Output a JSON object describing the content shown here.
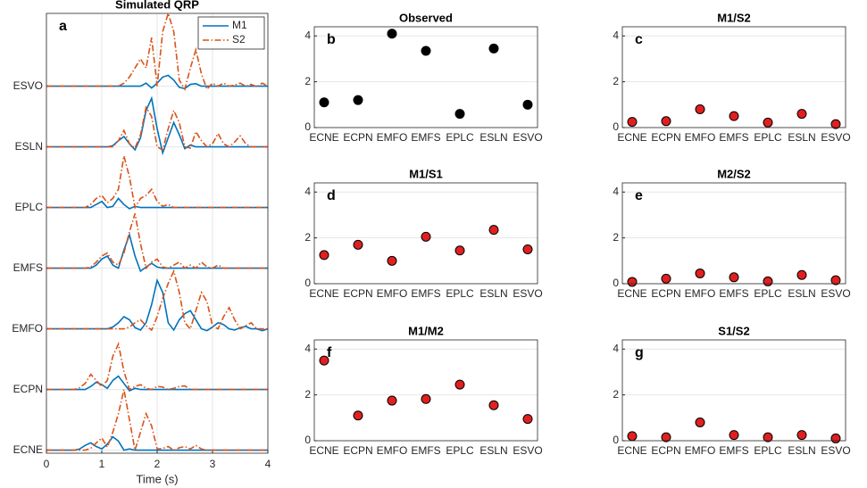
{
  "chart_data": [
    {
      "type": "line",
      "title": "Simulated QRP",
      "panel_label": "a",
      "xlabel": "Time (s)",
      "x": [
        0,
        0.1,
        0.2,
        0.3,
        0.4,
        0.5,
        0.6,
        0.7,
        0.8,
        0.9,
        1,
        1.1,
        1.2,
        1.3,
        1.4,
        1.5,
        1.6,
        1.7,
        1.8,
        1.9,
        2,
        2.1,
        2.2,
        2.3,
        2.4,
        2.5,
        2.6,
        2.7,
        2.8,
        2.9,
        3,
        3.1,
        3.2,
        3.3,
        3.4,
        3.5,
        3.6,
        3.7,
        3.8,
        3.9,
        4
      ],
      "series": [
        {
          "name": "M1",
          "color": "#0072bd",
          "line_style": "solid",
          "values": [
            [
              0,
              0,
              0,
              0,
              0,
              0,
              0.02,
              0.08,
              0.12,
              0.06,
              0.02,
              0.1,
              0.22,
              0.15,
              0,
              0.02,
              0,
              0,
              0,
              0,
              0,
              0,
              0,
              0,
              0,
              0,
              0,
              0,
              0,
              0,
              0,
              0,
              0,
              0,
              0,
              0,
              0,
              0,
              0,
              0,
              0
            ],
            [
              1,
              1,
              1,
              1,
              1,
              1,
              1,
              1,
              1.05,
              1.12,
              1.08,
              1.02,
              1.15,
              1.22,
              1.1,
              0.98,
              1.02,
              1,
              1,
              1,
              1,
              1,
              1,
              1,
              1,
              1,
              1,
              1,
              1,
              1,
              1,
              1,
              1,
              1,
              1,
              1,
              1,
              1,
              1,
              1,
              1
            ],
            [
              2,
              2,
              2,
              2,
              2,
              2,
              2,
              2,
              2,
              2,
              2,
              2,
              2.03,
              2.1,
              2.2,
              2.15,
              2.02,
              1.98,
              2.1,
              2.4,
              2.8,
              2.6,
              2.1,
              1.98,
              2.15,
              2.25,
              2.3,
              2.15,
              2,
              1.97,
              2.03,
              2.1,
              2.07,
              2,
              1.98,
              2.02,
              2.04,
              2,
              2,
              1.97,
              2
            ],
            [
              3,
              3,
              3,
              3,
              3,
              3,
              3,
              3,
              3,
              3.05,
              3.15,
              3.2,
              3.05,
              3,
              3.3,
              3.55,
              3.2,
              2.95,
              3.02,
              3.08,
              3.02,
              3,
              3,
              3,
              3,
              3,
              3,
              3,
              3,
              3,
              3,
              3,
              3,
              3,
              3,
              3,
              3,
              3,
              3,
              3,
              3
            ],
            [
              4,
              4,
              4,
              4,
              4,
              4,
              4,
              4,
              4,
              4.05,
              4.1,
              4,
              4.02,
              4.15,
              4.05,
              3.98,
              4.02,
              4,
              4,
              4,
              4,
              4,
              4,
              4,
              4,
              4,
              4,
              4,
              4,
              4,
              4,
              4,
              4,
              4,
              4,
              4,
              4,
              4,
              4,
              4,
              4
            ],
            [
              5,
              5,
              5,
              5,
              5,
              5,
              5,
              5,
              5,
              5,
              5,
              5,
              5.02,
              5.1,
              5.17,
              5.05,
              4.95,
              5.15,
              5.6,
              5.8,
              5.3,
              4.9,
              5.15,
              5.4,
              5.2,
              4.97,
              5.03,
              5,
              5,
              5,
              5,
              5,
              5,
              5,
              5,
              5,
              5,
              5,
              5,
              5,
              5
            ],
            [
              6,
              6,
              6,
              6,
              6,
              6,
              6,
              6,
              6,
              6,
              6,
              6,
              6,
              6,
              6,
              6,
              6,
              6,
              6.05,
              5.97,
              6.05,
              6.15,
              6.18,
              6.1,
              5.98,
              5.96,
              6.03,
              6.04,
              6,
              6,
              6,
              6,
              6,
              6,
              6,
              6,
              6,
              6,
              6,
              6,
              6
            ]
          ]
        },
        {
          "name": "S2",
          "color": "#d95319",
          "line_style": "dashdot",
          "values": [
            [
              0,
              0,
              0,
              0,
              0,
              0,
              0,
              0,
              0.03,
              0.12,
              0.2,
              0.05,
              0.3,
              0.6,
              1,
              0.5,
              0,
              0.3,
              0.6,
              0.4,
              0.02,
              0.03,
              0.06,
              0,
              0.04,
              0.06,
              0.02,
              0.08,
              0.02,
              0,
              0,
              0,
              0,
              0,
              0,
              0,
              0,
              0,
              0,
              0,
              0
            ],
            [
              1,
              1,
              1,
              1,
              1,
              1,
              1.03,
              1.1,
              1.25,
              1.15,
              1.05,
              1.15,
              1.55,
              1.75,
              1.3,
              1,
              1.05,
              1.08,
              1.02,
              1,
              1.05,
              1.04,
              1,
              1.02,
              1.05,
              1.06,
              1,
              1,
              1,
              1,
              1,
              1,
              1,
              1,
              1,
              1,
              1,
              1,
              1,
              1,
              1
            ],
            [
              2,
              2,
              2,
              2,
              2,
              2,
              2,
              2,
              2,
              2,
              2,
              2,
              2,
              2,
              2,
              2.03,
              2.1,
              2.15,
              2.05,
              1.98,
              2.2,
              2.5,
              2.75,
              2.95,
              2.6,
              2.1,
              2,
              2.3,
              2.6,
              2.45,
              2.05,
              2,
              2.2,
              2.35,
              2.15,
              2,
              2.05,
              2.1,
              2,
              2,
              2
            ],
            [
              3,
              3,
              3,
              3,
              3,
              3,
              3,
              3,
              3.02,
              3.1,
              3.2,
              3.25,
              3.1,
              3.05,
              3.25,
              3.6,
              3.9,
              3.4,
              3,
              3.1,
              3.15,
              3.02,
              3,
              3.05,
              3.1,
              3,
              3.05,
              3,
              3.1,
              3.02,
              3,
              3.05,
              3,
              3,
              3,
              3,
              3,
              3,
              3,
              3,
              3
            ],
            [
              4,
              4,
              4,
              4,
              4,
              4,
              4,
              4,
              4.05,
              4.15,
              4.2,
              4.08,
              4.15,
              4.3,
              4.85,
              4.5,
              4,
              4.15,
              4.2,
              4.3,
              4.1,
              4.02,
              4.05,
              4,
              4,
              4,
              4,
              4,
              4,
              4,
              4,
              4,
              4,
              4,
              4,
              4,
              4,
              4,
              4,
              4,
              4
            ],
            [
              5,
              5,
              5,
              5,
              5,
              5,
              5,
              5,
              5,
              5,
              5,
              5,
              5,
              5.1,
              5.27,
              5.05,
              4.98,
              5.2,
              5.65,
              5.5,
              5,
              4.95,
              5.3,
              5.6,
              5.4,
              5,
              4.98,
              5.25,
              5.1,
              5,
              5.05,
              5.22,
              5.05,
              5,
              5.08,
              5.18,
              5.05,
              5,
              5,
              5,
              5
            ],
            [
              6,
              6,
              6,
              6,
              6,
              6,
              6,
              6,
              6,
              6,
              6,
              6,
              6,
              6,
              6.05,
              6.15,
              6.3,
              6.45,
              6.3,
              6.8,
              6,
              6.9,
              7.2,
              6.9,
              6.1,
              5.95,
              6.3,
              6.6,
              6.2,
              5.95,
              6.05,
              6,
              6.05,
              6,
              6.02,
              6.05,
              6,
              6.03,
              5.99,
              6.05,
              6
            ]
          ]
        }
      ],
      "xlim": [
        0,
        4
      ],
      "xticks": [
        0,
        1,
        2,
        3,
        4
      ],
      "ylim": [
        -0.05,
        7.2
      ],
      "yticks": [
        {
          "value": 0,
          "label": "ECNE"
        },
        {
          "value": 1,
          "label": "ECPN"
        },
        {
          "value": 2,
          "label": "EMFO"
        },
        {
          "value": 3,
          "label": "EMFS"
        },
        {
          "value": 4,
          "label": "EPLC"
        },
        {
          "value": 5,
          "label": "ESLN"
        },
        {
          "value": 6,
          "label": "ESVO"
        }
      ],
      "grid": true,
      "legend": "upper right"
    },
    {
      "type": "scatter",
      "title": "Observed",
      "panel_label": "b",
      "categories": [
        "ECNE",
        "ECPN",
        "EMFO",
        "EMFS",
        "EPLC",
        "ESLN",
        "ESVO"
      ],
      "values": [
        1.1,
        1.2,
        4.1,
        3.35,
        0.6,
        3.45,
        1.0
      ],
      "color": "#000000",
      "ylim": [
        0,
        4.4
      ],
      "yticks": [
        0,
        2,
        4
      ],
      "grid": true
    },
    {
      "type": "scatter",
      "title": "M1/S2",
      "panel_label": "c",
      "categories": [
        "ECNE",
        "ECPN",
        "EMFO",
        "EMFS",
        "EPLC",
        "ESLN",
        "ESVO"
      ],
      "values": [
        0.25,
        0.28,
        0.8,
        0.5,
        0.22,
        0.6,
        0.15
      ],
      "color": "#e02020",
      "ylim": [
        0,
        4.4
      ],
      "yticks": [
        0,
        2,
        4
      ],
      "grid": true
    },
    {
      "type": "scatter",
      "title": "M1/S1",
      "panel_label": "d",
      "categories": [
        "ECNE",
        "ECPN",
        "EMFO",
        "EMFS",
        "EPLC",
        "ESLN",
        "ESVO"
      ],
      "values": [
        1.25,
        1.7,
        1.0,
        2.05,
        1.45,
        2.35,
        1.5
      ],
      "color": "#e02020",
      "ylim": [
        0,
        4.4
      ],
      "yticks": [
        0,
        2,
        4
      ],
      "grid": true
    },
    {
      "type": "scatter",
      "title": "M2/S2",
      "panel_label": "e",
      "categories": [
        "ECNE",
        "ECPN",
        "EMFO",
        "EMFS",
        "EPLC",
        "ESLN",
        "ESVO"
      ],
      "values": [
        0.08,
        0.22,
        0.45,
        0.28,
        0.1,
        0.38,
        0.15
      ],
      "color": "#e02020",
      "ylim": [
        0,
        4.4
      ],
      "yticks": [
        0,
        2,
        4
      ],
      "grid": true
    },
    {
      "type": "scatter",
      "title": "M1/M2",
      "panel_label": "f",
      "categories": [
        "ECNE",
        "ECPN",
        "EMFO",
        "EMFS",
        "EPLC",
        "ESLN",
        "ESVO"
      ],
      "values": [
        3.5,
        1.1,
        1.75,
        1.82,
        2.45,
        1.55,
        0.95
      ],
      "color": "#e02020",
      "ylim": [
        0,
        4.4
      ],
      "yticks": [
        0,
        2,
        4
      ],
      "grid": true
    },
    {
      "type": "scatter",
      "title": "S1/S2",
      "panel_label": "g",
      "categories": [
        "ECNE",
        "ECPN",
        "EMFO",
        "EMFS",
        "EPLC",
        "ESLN",
        "ESVO"
      ],
      "values": [
        0.2,
        0.15,
        0.8,
        0.25,
        0.15,
        0.25,
        0.1
      ],
      "color": "#e02020",
      "ylim": [
        0,
        4.4
      ],
      "yticks": [
        0,
        2,
        4
      ],
      "grid": true
    }
  ]
}
